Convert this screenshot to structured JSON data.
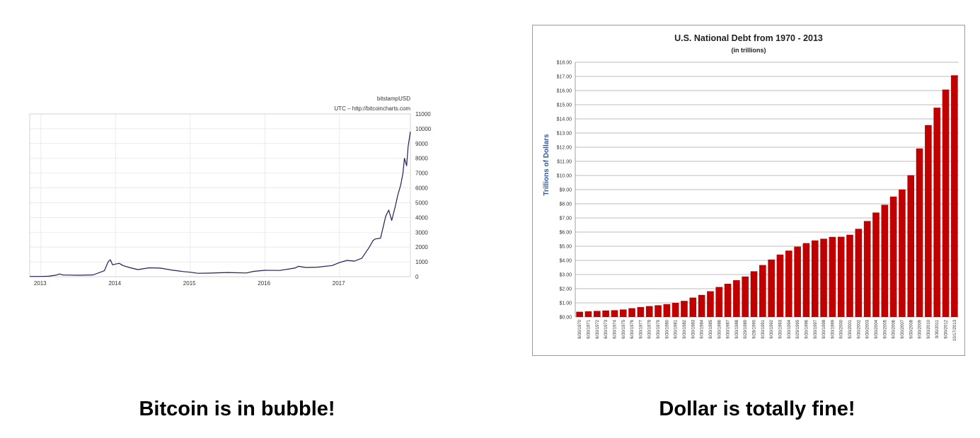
{
  "chart_data": [
    {
      "type": "line",
      "title": "bitstampUSD",
      "subtitle": "UTC – http://bitcoincharts.com",
      "x_ticks": [
        "2013",
        "2014",
        "2015",
        "2016",
        "2017"
      ],
      "y_ticks": [
        "0",
        "1000",
        "2000",
        "3000",
        "4000",
        "5000",
        "6000",
        "7000",
        "8000",
        "9000",
        "10000",
        "11000"
      ],
      "ylim": [
        0,
        11000
      ],
      "xlim": [
        2012.85,
        2017.95
      ],
      "grid": true,
      "series": [
        {
          "color": "#1f1f5a",
          "x": [
            2012.85,
            2013.0,
            2013.1,
            2013.2,
            2013.25,
            2013.3,
            2013.35,
            2013.5,
            2013.7,
            2013.85,
            2013.9,
            2013.93,
            2013.96,
            2014.0,
            2014.05,
            2014.1,
            2014.2,
            2014.3,
            2014.45,
            2014.6,
            2014.75,
            2014.9,
            2015.0,
            2015.1,
            2015.25,
            2015.5,
            2015.75,
            2015.85,
            2016.0,
            2016.2,
            2016.4,
            2016.45,
            2016.55,
            2016.7,
            2016.9,
            2017.0,
            2017.1,
            2017.2,
            2017.3,
            2017.4,
            2017.45,
            2017.48,
            2017.55,
            2017.62,
            2017.66,
            2017.7,
            2017.75,
            2017.78,
            2017.82,
            2017.85,
            2017.87,
            2017.9,
            2017.92,
            2017.95
          ],
          "y": [
            13,
            13,
            30,
            100,
            180,
            110,
            110,
            95,
            120,
            400,
            1000,
            1150,
            800,
            850,
            900,
            750,
            600,
            480,
            600,
            580,
            450,
            350,
            300,
            230,
            240,
            280,
            250,
            360,
            430,
            420,
            580,
            700,
            620,
            640,
            750,
            950,
            1100,
            1050,
            1250,
            2000,
            2450,
            2550,
            2600,
            4100,
            4500,
            3800,
            4800,
            5500,
            6200,
            7000,
            8000,
            7500,
            8800,
            9800
          ]
        }
      ]
    },
    {
      "type": "bar",
      "title": "U.S. National Debt from 1970 - 2013",
      "subtitle": "(in trillions)",
      "ylabel": "Trillions of Dollars",
      "ylim": [
        0,
        18
      ],
      "y_ticks": [
        "$0.00",
        "$1.00",
        "$2.00",
        "$3.00",
        "$4.00",
        "$5.00",
        "$6.00",
        "$7.00",
        "$8.00",
        "$9.00",
        "$10.00",
        "$11.00",
        "$12.00",
        "$13.00",
        "$14.00",
        "$15.00",
        "$16.00",
        "$17.00",
        "$18.00"
      ],
      "grid": true,
      "categories": [
        "6/30/1970",
        "6/30/1971",
        "6/30/1972",
        "6/30/1973",
        "6/30/1974",
        "6/30/1975",
        "6/30/1976",
        "9/30/1977",
        "9/30/1978",
        "9/30/1979",
        "9/30/1980",
        "9/30/1981",
        "9/30/1982",
        "9/30/1983",
        "9/30/1984",
        "9/30/1985",
        "9/30/1986",
        "9/30/1987",
        "9/30/1988",
        "9/29/1989",
        "9/28/1990",
        "9/30/1991",
        "9/30/1992",
        "9/30/1993",
        "9/30/1994",
        "9/29/1995",
        "9/30/1996",
        "9/30/1997",
        "9/30/1998",
        "9/30/1999",
        "9/30/2000",
        "9/30/2001",
        "9/30/2002",
        "9/30/2003",
        "9/30/2004",
        "9/30/2005",
        "9/30/2006",
        "9/30/2007",
        "9/30/2008",
        "9/30/2009",
        "9/30/2010",
        "9/30/2011",
        "9/30/2012",
        "10/17/2013"
      ],
      "series": [
        {
          "color": "#c00000",
          "values": [
            0.37,
            0.4,
            0.43,
            0.46,
            0.48,
            0.53,
            0.62,
            0.7,
            0.77,
            0.83,
            0.91,
            1.0,
            1.14,
            1.37,
            1.56,
            1.82,
            2.12,
            2.35,
            2.6,
            2.86,
            3.23,
            3.67,
            4.06,
            4.41,
            4.69,
            4.97,
            5.22,
            5.41,
            5.53,
            5.66,
            5.67,
            5.81,
            6.23,
            6.78,
            7.38,
            7.93,
            8.51,
            9.01,
            10.02,
            11.91,
            13.56,
            14.79,
            16.07,
            17.08
          ]
        }
      ]
    }
  ],
  "captions": {
    "left": "Bitcoin is in bubble!",
    "right": "Dollar is totally fine!"
  }
}
